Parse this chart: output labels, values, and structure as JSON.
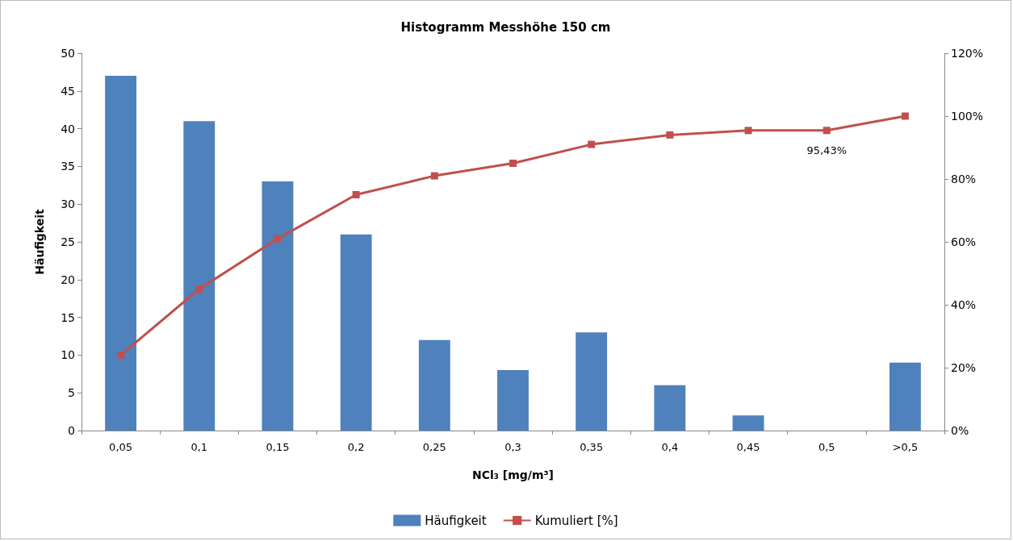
{
  "chart_data": {
    "type": "bar",
    "title": "Histogramm Messhöhe 150 cm",
    "xlabel": "NCl₃ [mg/m³]",
    "ylabel": "Häufigkeit",
    "categories": [
      "0,05",
      "0,1",
      "0,15",
      "0,2",
      "0,25",
      "0,3",
      "0,35",
      "0,4",
      "0,45",
      "0,5",
      ">0,5"
    ],
    "series": [
      {
        "name": "Häufigkeit",
        "color": "#4f81bd",
        "values": [
          47,
          41,
          33,
          26,
          12,
          8,
          13,
          6,
          2,
          0,
          9
        ]
      },
      {
        "name": "Kumuliert [%]",
        "type": "line",
        "axis": "y2",
        "color": "#c0504d",
        "marker": "square",
        "values": [
          24,
          45,
          61,
          75,
          81,
          85,
          91,
          94,
          95.43,
          95.43,
          100
        ],
        "value_labels": [
          null,
          null,
          null,
          null,
          null,
          null,
          null,
          null,
          null,
          "95,43%",
          null
        ]
      }
    ],
    "ylim": [
      0,
      50
    ],
    "yticks": [
      0,
      5,
      10,
      15,
      20,
      25,
      30,
      35,
      40,
      45,
      50
    ],
    "y2lim": [
      0,
      120
    ],
    "y2ticks": [
      {
        "value": 0,
        "label": "0%"
      },
      {
        "value": 20,
        "label": "20%"
      },
      {
        "value": 40,
        "label": "40%"
      },
      {
        "value": 60,
        "label": "60%"
      },
      {
        "value": 80,
        "label": "80%"
      },
      {
        "value": 100,
        "label": "100%"
      },
      {
        "value": 120,
        "label": "120%"
      }
    ],
    "grid": false,
    "legend": "bottom"
  }
}
